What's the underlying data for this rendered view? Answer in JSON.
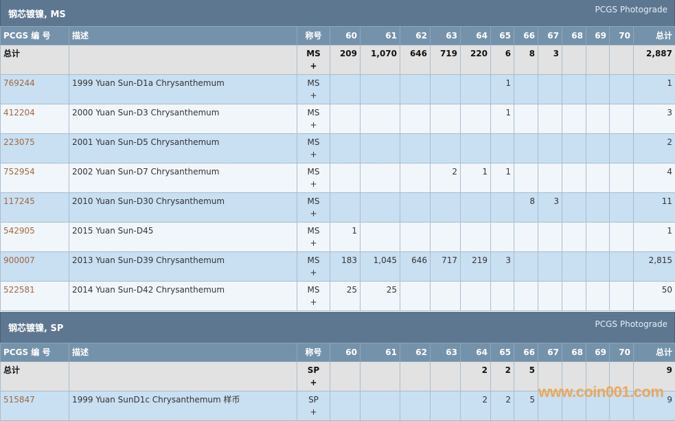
{
  "columns": [
    "PCGS 编 号",
    "描述",
    "称号",
    "60",
    "61",
    "62",
    "63",
    "64",
    "65",
    "66",
    "67",
    "68",
    "69",
    "70",
    "总计"
  ],
  "sections": [
    {
      "title": "钢芯镀镍, MS",
      "photograde": "PCGS Photograde",
      "total": {
        "label": "总计",
        "designation": "MS",
        "plus": "+",
        "grades": [
          "209",
          "1,070",
          "646",
          "719",
          "220",
          "6",
          "8",
          "3",
          "",
          "",
          ""
        ],
        "sum": "2,887"
      },
      "rows": [
        {
          "id": "769244",
          "desc": "1999 Yuan Sun-D1a Chrysanthemum",
          "designation": "MS",
          "plus": "+",
          "grades": [
            "",
            "",
            "",
            "",
            "",
            "1",
            "",
            "",
            "",
            "",
            ""
          ],
          "sum": "1"
        },
        {
          "id": "412204",
          "desc": "2000 Yuan Sun-D3 Chrysanthemum",
          "designation": "MS",
          "plus": "+",
          "grades": [
            "",
            "",
            "",
            "",
            "",
            "1",
            "",
            "",
            "",
            "",
            ""
          ],
          "sum": "3"
        },
        {
          "id": "223075",
          "desc": "2001 Yuan Sun-D5 Chrysanthemum",
          "designation": "MS",
          "plus": "+",
          "grades": [
            "",
            "",
            "",
            "",
            "",
            "",
            "",
            "",
            "",
            "",
            ""
          ],
          "sum": "2"
        },
        {
          "id": "752954",
          "desc": "2002 Yuan Sun-D7 Chrysanthemum",
          "designation": "MS",
          "plus": "+",
          "grades": [
            "",
            "",
            "",
            "2",
            "1",
            "1",
            "",
            "",
            "",
            "",
            ""
          ],
          "sum": "4"
        },
        {
          "id": "117245",
          "desc": "2010 Yuan Sun-D30 Chrysanthemum",
          "designation": "MS",
          "plus": "+",
          "grades": [
            "",
            "",
            "",
            "",
            "",
            "",
            "8",
            "3",
            "",
            "",
            ""
          ],
          "sum": "11"
        },
        {
          "id": "542905",
          "desc": "2015 Yuan Sun-D45",
          "designation": "MS",
          "plus": "+",
          "grades": [
            "1",
            "",
            "",
            "",
            "",
            "",
            "",
            "",
            "",
            "",
            ""
          ],
          "sum": "1"
        },
        {
          "id": "900007",
          "desc": "2013 Yuan Sun-D39 Chrysanthemum",
          "designation": "MS",
          "plus": "+",
          "grades": [
            "183",
            "1,045",
            "646",
            "717",
            "219",
            "3",
            "",
            "",
            "",
            "",
            ""
          ],
          "sum": "2,815"
        },
        {
          "id": "522581",
          "desc": "2014 Yuan Sun-D42 Chrysanthemum",
          "designation": "MS",
          "plus": "+",
          "grades": [
            "25",
            "25",
            "",
            "",
            "",
            "",
            "",
            "",
            "",
            "",
            ""
          ],
          "sum": "50"
        }
      ]
    },
    {
      "title": "钢芯镀镍, SP",
      "photograde": "PCGS Photograde",
      "total": {
        "label": "总计",
        "designation": "SP",
        "plus": "+",
        "grades": [
          "",
          "",
          "",
          "",
          "2",
          "2",
          "5",
          "",
          "",
          "",
          ""
        ],
        "sum": "9"
      },
      "rows": [
        {
          "id": "515847",
          "desc": "1999 Yuan SunD1c Chrysanthemum 样币",
          "designation": "SP",
          "plus": "+",
          "grades": [
            "",
            "",
            "",
            "",
            "2",
            "2",
            "5",
            "",
            "",
            "",
            ""
          ],
          "sum": "9"
        }
      ]
    }
  ],
  "watermark": "www.coin001.com"
}
